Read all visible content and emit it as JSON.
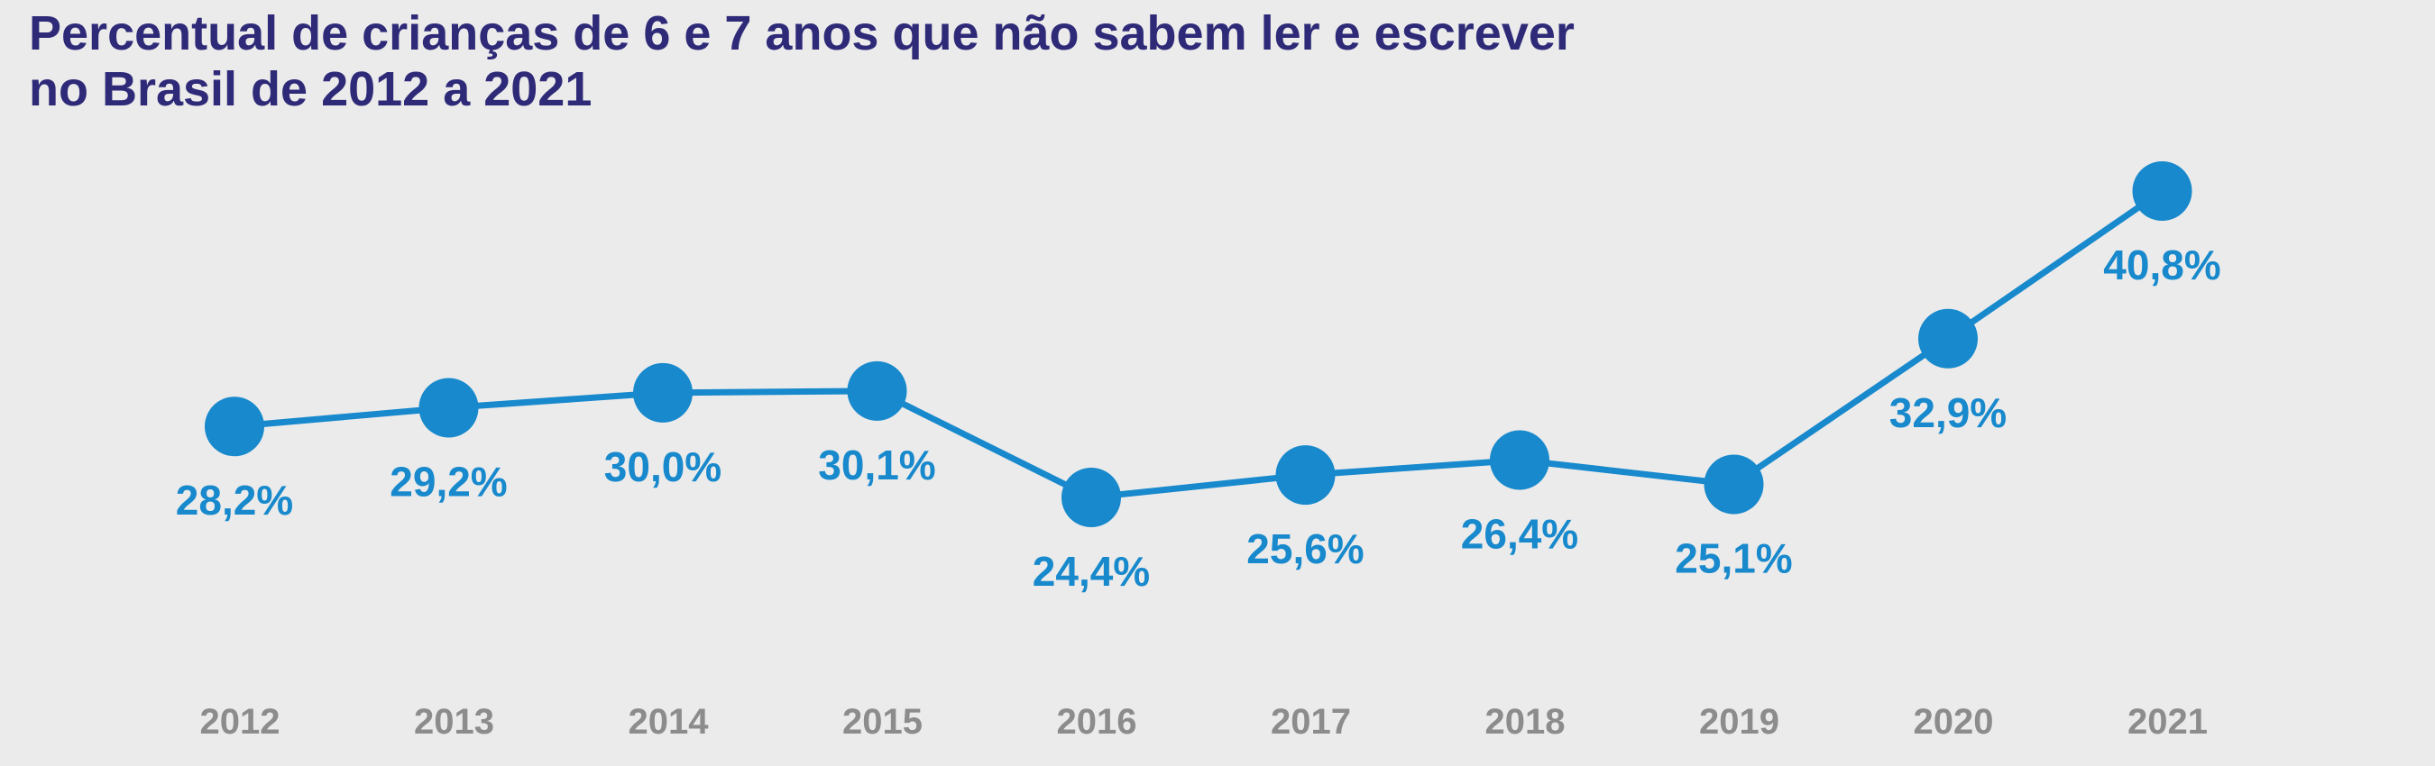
{
  "chart_data": {
    "type": "line",
    "title_lines": [
      "Percentual de crianças de 6 e 7 anos que não sabem ler e escrever",
      "no Brasil de 2012 a 2021"
    ],
    "categories": [
      "2012",
      "2013",
      "2014",
      "2015",
      "2016",
      "2017",
      "2018",
      "2019",
      "2020",
      "2021"
    ],
    "values": [
      28.2,
      29.2,
      30.0,
      30.1,
      24.4,
      25.6,
      26.4,
      25.1,
      32.9,
      40.8
    ],
    "data_labels": [
      "28,2%",
      "29,2%",
      "30,0%",
      "30,1%",
      "24,4%",
      "25,6%",
      "26,4%",
      "25,1%",
      "32,9%",
      "40,8%"
    ],
    "y_unit": "%",
    "grid": false,
    "legend": "none",
    "colors": {
      "line": "#1789cc",
      "marker": "#1789cc",
      "data_label": "#1789cc",
      "title": "#2e2a78",
      "axis_label": "#8c8c8c",
      "background": "#ebebeb"
    }
  }
}
